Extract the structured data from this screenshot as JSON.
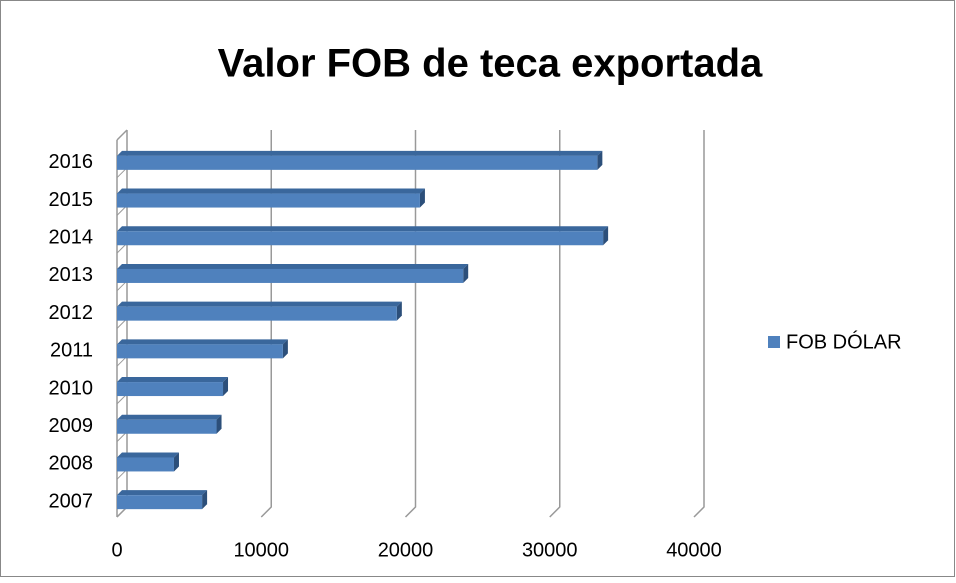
{
  "chart_data": {
    "type": "bar",
    "orientation": "horizontal",
    "title": "Valor FOB de teca exportada",
    "categories": [
      "2007",
      "2008",
      "2009",
      "2010",
      "2011",
      "2012",
      "2013",
      "2014",
      "2015",
      "2016"
    ],
    "series": [
      {
        "name": "FOB DÓLAR",
        "color": "#4f81bd",
        "values": [
          5900,
          3950,
          6900,
          7350,
          11500,
          19400,
          24000,
          33700,
          21000,
          33300
        ]
      }
    ],
    "xlim": [
      0,
      40000
    ],
    "xticks": [
      0,
      10000,
      20000,
      30000,
      40000
    ],
    "grid": true,
    "legend": "right"
  }
}
